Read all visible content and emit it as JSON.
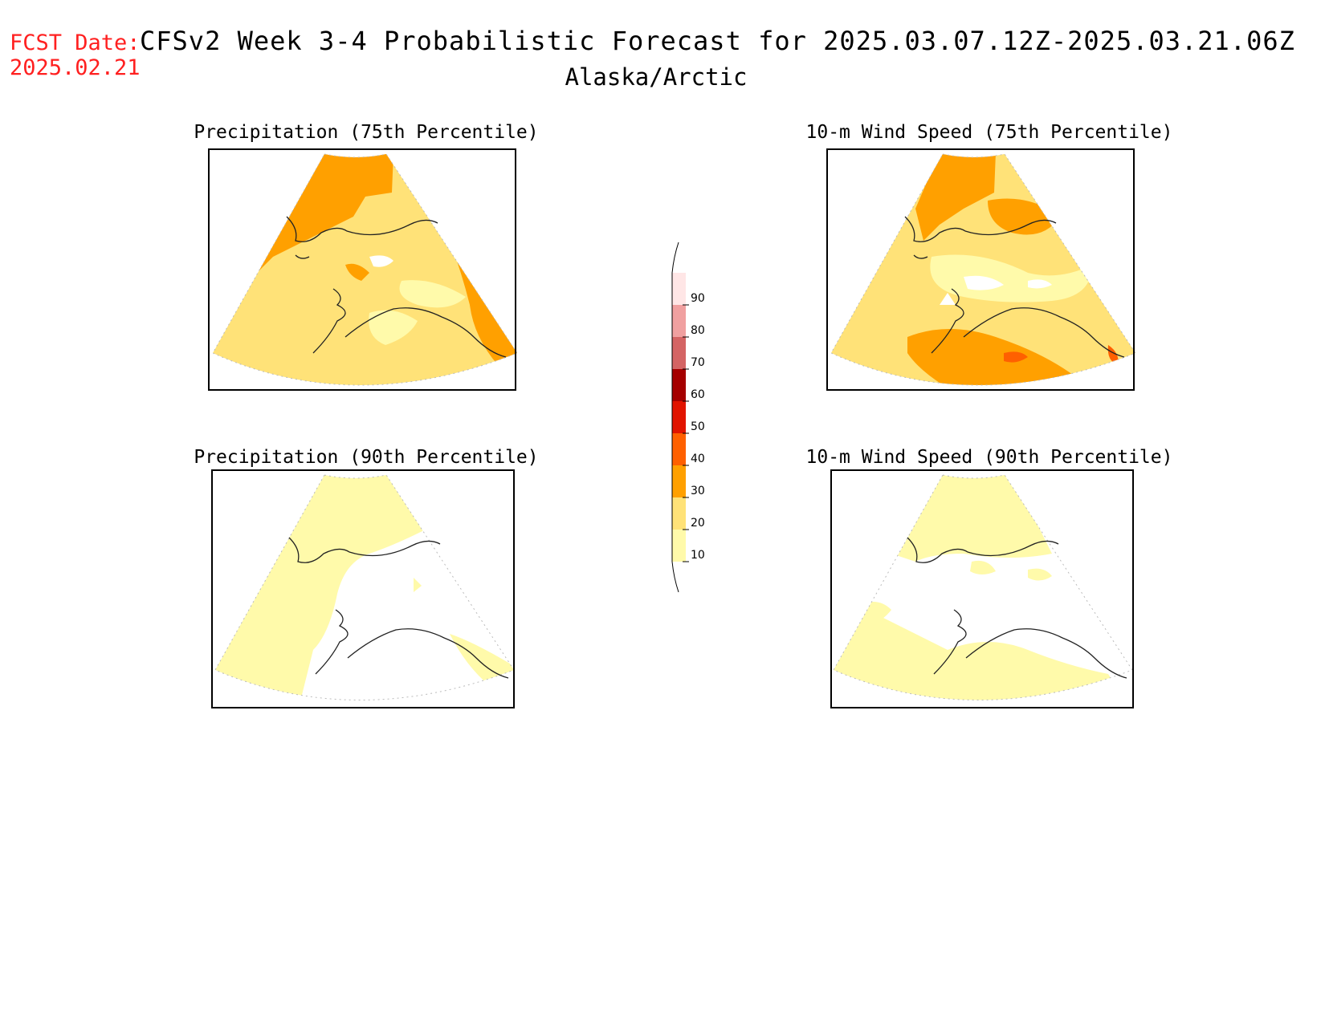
{
  "header": {
    "fcst_label": "FCST Date:",
    "fcst_date": "2025.02.21",
    "title": "CFSv2 Week 3-4 Probabilistic Forecast for 2025.03.07.12Z-2025.03.21.06Z",
    "region": "Alaska/Arctic"
  },
  "panels": [
    {
      "title": "Precipitation (75th Percentile)"
    },
    {
      "title": "10-m Wind Speed (75th Percentile)"
    },
    {
      "title": "Precipitation (90th Percentile)"
    },
    {
      "title": "10-m Wind Speed (90th Percentile)"
    }
  ],
  "colorbar": {
    "labels": [
      "10",
      "20",
      "30",
      "40",
      "50",
      "60",
      "70",
      "80",
      "90"
    ],
    "colors": [
      "#fffaaa",
      "#ffe278",
      "#ffa000",
      "#ff6000",
      "#e11400",
      "#a50000",
      "#d46464",
      "#f0a0a0",
      "#ffe6e6"
    ]
  },
  "colors": {
    "title": "#000000",
    "fcst": "#ff2020"
  }
}
